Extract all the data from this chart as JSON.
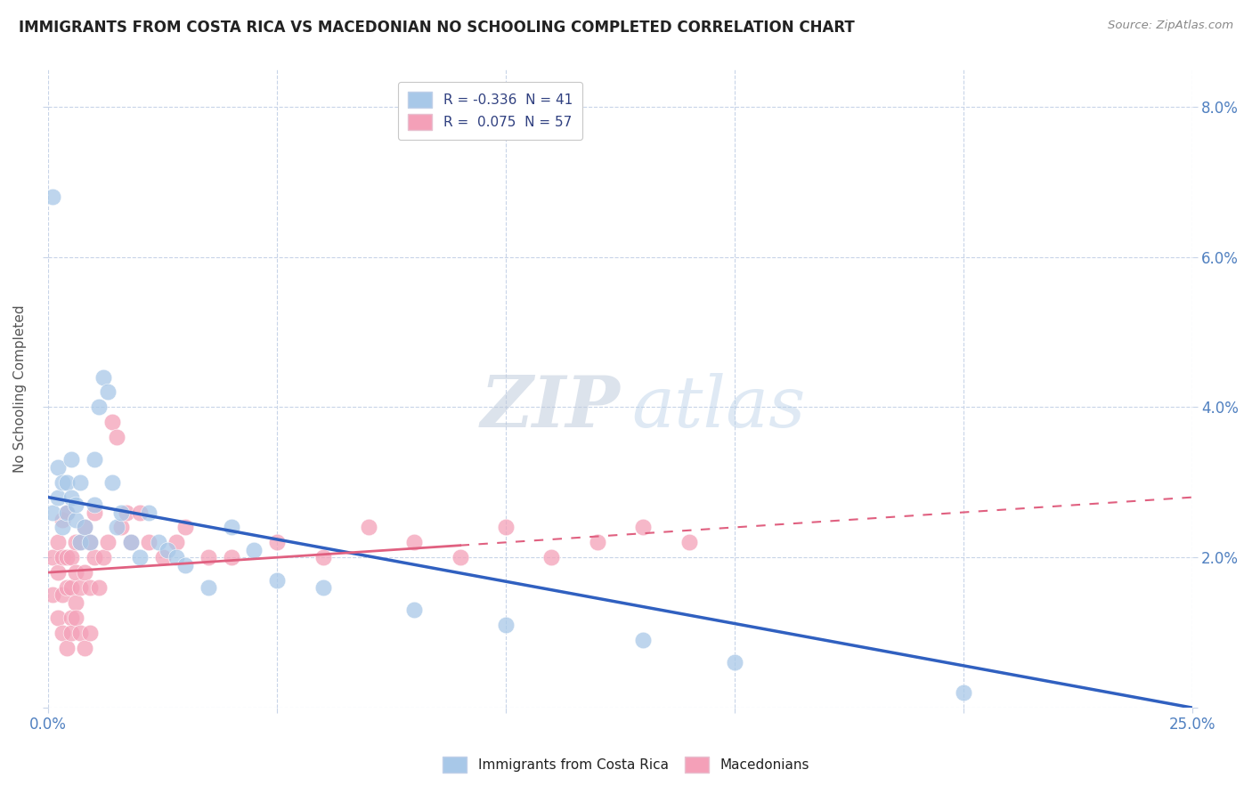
{
  "title": "IMMIGRANTS FROM COSTA RICA VS MACEDONIAN NO SCHOOLING COMPLETED CORRELATION CHART",
  "source": "Source: ZipAtlas.com",
  "ylabel": "No Schooling Completed",
  "xlim": [
    0.0,
    0.25
  ],
  "ylim": [
    0.0,
    0.085
  ],
  "blue_color": "#a8c8e8",
  "pink_color": "#f4a0b8",
  "blue_line_color": "#3060c0",
  "pink_line_color": "#e06080",
  "watermark_zip": "ZIP",
  "watermark_atlas": "atlas",
  "background_color": "#ffffff",
  "grid_color": "#c8d4e8",
  "blue_scatter_x": [
    0.001,
    0.002,
    0.002,
    0.003,
    0.003,
    0.004,
    0.004,
    0.005,
    0.005,
    0.006,
    0.006,
    0.007,
    0.007,
    0.008,
    0.009,
    0.01,
    0.01,
    0.011,
    0.012,
    0.013,
    0.014,
    0.015,
    0.016,
    0.018,
    0.02,
    0.022,
    0.024,
    0.026,
    0.028,
    0.03,
    0.035,
    0.04,
    0.045,
    0.05,
    0.06,
    0.08,
    0.1,
    0.13,
    0.15,
    0.2,
    0.001
  ],
  "blue_scatter_y": [
    0.026,
    0.028,
    0.032,
    0.024,
    0.03,
    0.026,
    0.03,
    0.028,
    0.033,
    0.025,
    0.027,
    0.022,
    0.03,
    0.024,
    0.022,
    0.033,
    0.027,
    0.04,
    0.044,
    0.042,
    0.03,
    0.024,
    0.026,
    0.022,
    0.02,
    0.026,
    0.022,
    0.021,
    0.02,
    0.019,
    0.016,
    0.024,
    0.021,
    0.017,
    0.016,
    0.013,
    0.011,
    0.009,
    0.006,
    0.002,
    0.068
  ],
  "pink_scatter_x": [
    0.001,
    0.001,
    0.002,
    0.002,
    0.002,
    0.003,
    0.003,
    0.003,
    0.004,
    0.004,
    0.004,
    0.005,
    0.005,
    0.005,
    0.006,
    0.006,
    0.006,
    0.007,
    0.007,
    0.008,
    0.008,
    0.009,
    0.009,
    0.01,
    0.01,
    0.011,
    0.012,
    0.013,
    0.014,
    0.015,
    0.016,
    0.017,
    0.018,
    0.02,
    0.022,
    0.025,
    0.028,
    0.03,
    0.035,
    0.04,
    0.05,
    0.06,
    0.07,
    0.08,
    0.09,
    0.1,
    0.11,
    0.12,
    0.13,
    0.14,
    0.003,
    0.004,
    0.005,
    0.006,
    0.007,
    0.008,
    0.009
  ],
  "pink_scatter_y": [
    0.02,
    0.015,
    0.022,
    0.018,
    0.012,
    0.025,
    0.02,
    0.015,
    0.026,
    0.02,
    0.016,
    0.02,
    0.016,
    0.012,
    0.022,
    0.018,
    0.014,
    0.022,
    0.016,
    0.024,
    0.018,
    0.022,
    0.016,
    0.026,
    0.02,
    0.016,
    0.02,
    0.022,
    0.038,
    0.036,
    0.024,
    0.026,
    0.022,
    0.026,
    0.022,
    0.02,
    0.022,
    0.024,
    0.02,
    0.02,
    0.022,
    0.02,
    0.024,
    0.022,
    0.02,
    0.024,
    0.02,
    0.022,
    0.024,
    0.022,
    0.01,
    0.008,
    0.01,
    0.012,
    0.01,
    0.008,
    0.01
  ],
  "blue_line_x0": 0.0,
  "blue_line_y0": 0.028,
  "blue_line_x1": 0.25,
  "blue_line_y1": 0.0,
  "pink_line_x0": 0.0,
  "pink_line_y0": 0.018,
  "pink_line_x1": 0.25,
  "pink_line_y1": 0.028,
  "ytick_vals": [
    0.0,
    0.02,
    0.04,
    0.06,
    0.08
  ],
  "ytick_labels": [
    "",
    "2.0%",
    "4.0%",
    "6.0%",
    "8.0%"
  ],
  "xtick_vals": [
    0.0,
    0.05,
    0.1,
    0.15,
    0.2,
    0.25
  ],
  "xtick_edge_labels": [
    "0.0%",
    "25.0%"
  ],
  "legend_labels": [
    "R = -0.336  N = 41",
    "R =  0.075  N = 57"
  ],
  "bottom_legend_labels": [
    "Immigrants from Costa Rica",
    "Macedonians"
  ],
  "title_color": "#222222",
  "source_color": "#888888",
  "tick_color": "#5080c0",
  "ylabel_color": "#555555"
}
